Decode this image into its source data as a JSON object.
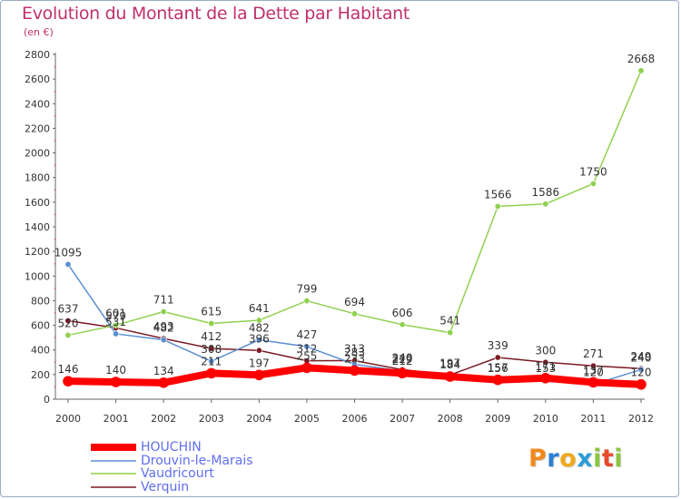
{
  "chart_data": {
    "type": "line",
    "title": "Evolution du Montant de la Dette par Habitant",
    "subtitle": "(en €)",
    "x": [
      2000,
      2001,
      2002,
      2003,
      2004,
      2005,
      2006,
      2007,
      2008,
      2009,
      2010,
      2011,
      2012
    ],
    "ylim": [
      0,
      2800
    ],
    "yticks": [
      0,
      200,
      400,
      600,
      800,
      1000,
      1200,
      1400,
      1600,
      1800,
      2000,
      2200,
      2400,
      2600,
      2800
    ],
    "grid": false,
    "legend_position": "bottom-left",
    "series": [
      {
        "name": "Verquin",
        "color": "#7b1a22",
        "values": [
          637,
          579,
          493,
          412,
          396,
          312,
          313,
          240,
          197,
          339,
          300,
          271,
          249
        ]
      },
      {
        "name": "Vaudricourt",
        "color": "#8fd14f",
        "values": [
          520,
          601,
          711,
          615,
          641,
          799,
          694,
          606,
          541,
          1566,
          1586,
          1750,
          2668
        ]
      },
      {
        "name": "Drouvin-le-Marais",
        "color": "#5a8fd0",
        "values": [
          1095,
          531,
          482,
          308,
          482,
          427,
          283,
          229,
          184,
          156,
          153,
          120,
          240
        ]
      },
      {
        "name": "HOUCHIN",
        "color": "#ff0000",
        "values": [
          146,
          140,
          134,
          211,
          197,
          255,
          233,
          212,
          184,
          157,
          171,
          137,
          120
        ]
      }
    ]
  },
  "legend": {
    "houchin": "HOUCHIN",
    "drouvin": "Drouvin-le-Marais",
    "vaudricourt": "Vaudricourt",
    "verquin": "Verquin"
  },
  "logo": {
    "text": "Proxiti",
    "colors": [
      "#f08a1e",
      "#2a7ed4",
      "#f0a81e",
      "#2a9ed4",
      "#8cc63f",
      "#e84a2a",
      "#8cc63f"
    ]
  }
}
